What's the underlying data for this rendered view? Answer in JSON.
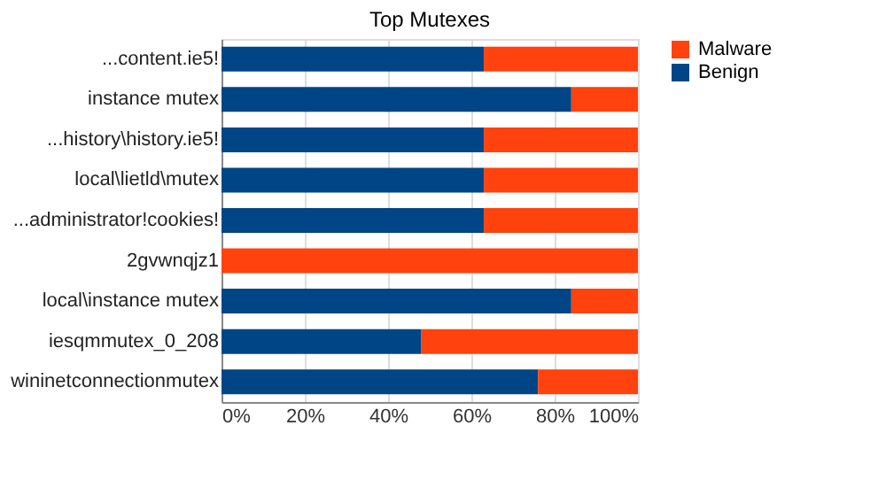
{
  "chart_data": {
    "type": "bar",
    "orientation": "horizontal",
    "stacked": true,
    "title": "Top Mutexes",
    "categories": [
      "...content.ie5!",
      "instance mutex",
      "...history\\history.ie5!",
      "local\\lietld\\mutex",
      "...administrator!cookies!",
      "2gvwnqjz1",
      "local\\instance mutex",
      "iesqmmutex_0_208",
      "wininetconnectionmutex"
    ],
    "series": [
      {
        "name": "Benign",
        "color": "#004586",
        "values": [
          63,
          84,
          63,
          63,
          63,
          0,
          84,
          48,
          76
        ]
      },
      {
        "name": "Malware",
        "color": "#ff420e",
        "values": [
          37,
          16,
          37,
          37,
          37,
          100,
          16,
          52,
          24
        ]
      }
    ],
    "xlim": [
      0,
      100
    ],
    "xticks": [
      {
        "value": 0,
        "label": "0%"
      },
      {
        "value": 20,
        "label": "20%"
      },
      {
        "value": 40,
        "label": "40%"
      },
      {
        "value": 60,
        "label": "60%"
      },
      {
        "value": 80,
        "label": "80%"
      },
      {
        "value": 100,
        "label": "100%"
      }
    ],
    "grid": "x",
    "legend": "right"
  }
}
